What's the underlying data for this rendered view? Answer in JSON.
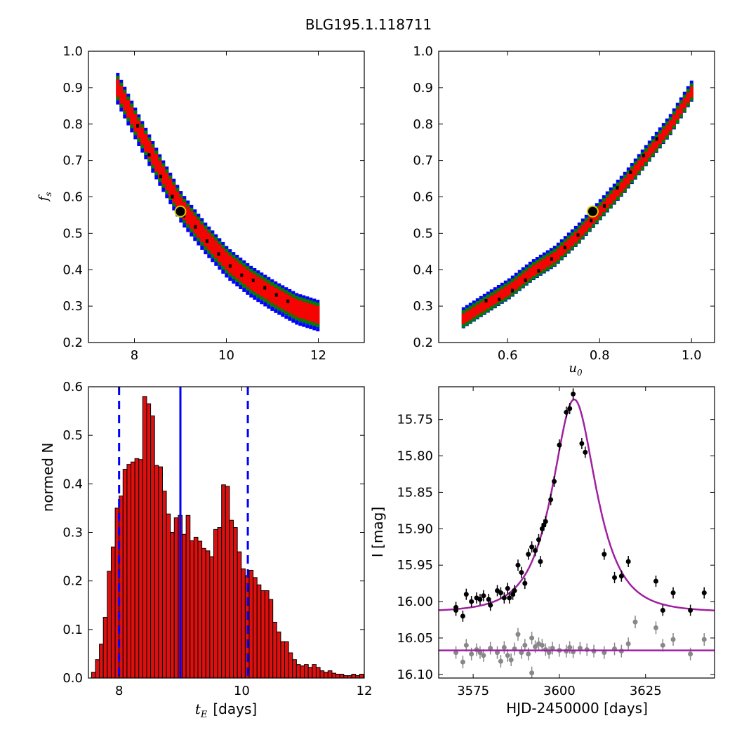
{
  "figure": {
    "suptitle": "BLG195.1.118711"
  },
  "colors": {
    "scatter_outer": "#0000ff",
    "scatter_mid": "#007f00",
    "scatter_inner": "#ff0000",
    "scatter_core": "#000000",
    "best_fit_marker": "#cccc00",
    "histogram_bar": "#dd1010",
    "vline": "#0000ff",
    "model_curve": "#a020a0",
    "data_main": "#000000",
    "data_residual": "#888888"
  },
  "chart_data": [
    {
      "id": "ax1",
      "type": "scatter",
      "xlabel": "",
      "ylabel": "f",
      "ylabel_sub": "s",
      "xlim": [
        7,
        13
      ],
      "ylim": [
        0.2,
        1.0
      ],
      "xticks": [
        8,
        10,
        12
      ],
      "yticks": [
        0.2,
        0.3,
        0.4,
        0.5,
        0.6,
        0.7,
        0.8,
        0.9,
        1.0
      ],
      "xticklabels": [
        "8",
        "10",
        "12"
      ],
      "yticklabels": [
        "0.2",
        "0.3",
        "0.4",
        "0.5",
        "0.6",
        "0.7",
        "0.8",
        "0.9",
        "1.0"
      ],
      "band": [
        [
          7.6,
          0.9
        ],
        [
          8.0,
          0.8
        ],
        [
          8.5,
          0.68
        ],
        [
          9.0,
          0.57
        ],
        [
          9.5,
          0.49
        ],
        [
          10.0,
          0.42
        ],
        [
          10.5,
          0.37
        ],
        [
          11.0,
          0.33
        ],
        [
          11.5,
          0.295
        ],
        [
          12.0,
          0.275
        ]
      ],
      "best_fit": [
        9.0,
        0.56
      ]
    },
    {
      "id": "ax2",
      "type": "scatter",
      "xlabel": "u",
      "xlabel_sub": "0",
      "ylabel": "",
      "xlim": [
        0.45,
        1.05
      ],
      "ylim": [
        0.2,
        1.0
      ],
      "xticks": [
        0.6,
        0.8,
        1.0
      ],
      "yticks": [
        0.2,
        0.3,
        0.4,
        0.5,
        0.6,
        0.7,
        0.8,
        0.9,
        1.0
      ],
      "xticklabels": [
        "0.6",
        "0.8",
        "1.0"
      ],
      "yticklabels": [
        "0.2",
        "0.3",
        "0.4",
        "0.5",
        "0.6",
        "0.7",
        "0.8",
        "0.9",
        "1.0"
      ],
      "band": [
        [
          0.5,
          0.27
        ],
        [
          0.55,
          0.31
        ],
        [
          0.6,
          0.35
        ],
        [
          0.65,
          0.4
        ],
        [
          0.7,
          0.44
        ],
        [
          0.75,
          0.5
        ],
        [
          0.8,
          0.57
        ],
        [
          0.85,
          0.64
        ],
        [
          0.9,
          0.72
        ],
        [
          0.95,
          0.8
        ],
        [
          1.0,
          0.9
        ]
      ],
      "best_fit": [
        0.785,
        0.56
      ]
    },
    {
      "id": "ax3",
      "type": "bar",
      "xlabel": "t",
      "xlabel_sub": "E",
      "xlabel_suffix": "[days]",
      "ylabel": "normed N",
      "xlim": [
        7.5,
        12.0
      ],
      "ylim": [
        0.0,
        0.6
      ],
      "xticks": [
        8,
        10,
        12
      ],
      "yticks": [
        0.0,
        0.1,
        0.2,
        0.3,
        0.4,
        0.5,
        0.6
      ],
      "xticklabels": [
        "8",
        "10",
        "12"
      ],
      "yticklabels": [
        "0.0",
        "0.1",
        "0.2",
        "0.3",
        "0.4",
        "0.5",
        "0.6"
      ],
      "bin_start": 7.55,
      "bin_width": 0.0643,
      "values": [
        0.012,
        0.038,
        0.07,
        0.125,
        0.22,
        0.27,
        0.35,
        0.375,
        0.43,
        0.44,
        0.445,
        0.452,
        0.45,
        0.58,
        0.565,
        0.54,
        0.438,
        0.435,
        0.385,
        0.338,
        0.3,
        0.33,
        0.335,
        0.296,
        0.335,
        0.283,
        0.29,
        0.282,
        0.267,
        0.262,
        0.25,
        0.306,
        0.31,
        0.398,
        0.395,
        0.325,
        0.31,
        0.26,
        0.225,
        0.211,
        0.222,
        0.207,
        0.192,
        0.18,
        0.18,
        0.162,
        0.115,
        0.095,
        0.075,
        0.075,
        0.052,
        0.038,
        0.028,
        0.025,
        0.028,
        0.022,
        0.028,
        0.022,
        0.015,
        0.012,
        0.015,
        0.01,
        0.008,
        0.008,
        0.005,
        0.005,
        0.008,
        0.005,
        0.008
      ],
      "median": 9.0,
      "lower": 8.0,
      "upper": 10.1
    },
    {
      "id": "ax4",
      "type": "line",
      "xlabel": "HJD-2450000 [days]",
      "ylabel": "I [mag]",
      "xlim": [
        3565,
        3645
      ],
      "ylim": [
        16.105,
        15.705
      ],
      "xticks": [
        3575,
        3600,
        3625
      ],
      "yticks": [
        15.75,
        15.8,
        15.85,
        15.9,
        15.95,
        16.0,
        16.05,
        16.1
      ],
      "xticklabels": [
        "3575",
        "3600",
        "3625"
      ],
      "yticklabels": [
        "15.75",
        "15.80",
        "15.85",
        "15.90",
        "15.95",
        "16.00",
        "16.05",
        "16.10"
      ],
      "model": {
        "t0": 3604.3,
        "tE": 9.0,
        "u0": 0.785,
        "fs": 0.56,
        "i_base": 16.0145,
        "residual_baseline": 16.067
      },
      "series_main": [
        [
          3570,
          16.008
        ],
        [
          3570,
          16.012
        ],
        [
          3572,
          16.02
        ],
        [
          3573,
          15.99
        ],
        [
          3574.5,
          16.0
        ],
        [
          3576,
          15.995
        ],
        [
          3577,
          15.997
        ],
        [
          3578,
          15.992
        ],
        [
          3579.5,
          15.997
        ],
        [
          3580,
          16.005
        ],
        [
          3582,
          15.985
        ],
        [
          3583,
          15.988
        ],
        [
          3584,
          15.995
        ],
        [
          3585,
          15.982
        ],
        [
          3585.5,
          15.995
        ],
        [
          3586.5,
          15.99
        ],
        [
          3587,
          15.985
        ],
        [
          3588,
          15.95
        ],
        [
          3589,
          15.96
        ],
        [
          3590,
          15.975
        ],
        [
          3591,
          15.935
        ],
        [
          3592,
          15.925
        ],
        [
          3593,
          15.93
        ],
        [
          3594,
          15.915
        ],
        [
          3594.5,
          15.945
        ],
        [
          3595,
          15.9
        ],
        [
          3595.5,
          15.895
        ],
        [
          3596,
          15.89
        ],
        [
          3597.5,
          15.86
        ],
        [
          3598.5,
          15.835
        ],
        [
          3600,
          15.785
        ],
        [
          3602,
          15.74
        ],
        [
          3603,
          15.735
        ],
        [
          3604,
          15.715
        ],
        [
          3606.5,
          15.783
        ],
        [
          3607.5,
          15.795
        ],
        [
          3613,
          15.935
        ],
        [
          3616,
          15.967
        ],
        [
          3618,
          15.965
        ],
        [
          3620,
          15.945
        ],
        [
          3628,
          15.972
        ],
        [
          3630,
          16.012
        ],
        [
          3633,
          15.988
        ],
        [
          3638,
          16.012
        ],
        [
          3642,
          15.988
        ]
      ],
      "series_resid": [
        [
          3570,
          16.07
        ],
        [
          3572,
          16.083
        ],
        [
          3573,
          16.06
        ],
        [
          3574.5,
          16.072
        ],
        [
          3576,
          16.066
        ],
        [
          3577,
          16.07
        ],
        [
          3578,
          16.074
        ],
        [
          3580,
          16.064
        ],
        [
          3582,
          16.07
        ],
        [
          3583,
          16.082
        ],
        [
          3584,
          16.063
        ],
        [
          3585,
          16.074
        ],
        [
          3586,
          16.08
        ],
        [
          3587,
          16.065
        ],
        [
          3588,
          16.045
        ],
        [
          3589,
          16.07
        ],
        [
          3590,
          16.06
        ],
        [
          3591,
          16.072
        ],
        [
          3592,
          16.05
        ],
        [
          3593,
          16.062
        ],
        [
          3594,
          16.058
        ],
        [
          3595,
          16.06
        ],
        [
          3596,
          16.066
        ],
        [
          3597,
          16.07
        ],
        [
          3598,
          16.064
        ],
        [
          3600,
          16.067
        ],
        [
          3602,
          16.068
        ],
        [
          3603,
          16.063
        ],
        [
          3604,
          16.069
        ],
        [
          3606,
          16.064
        ],
        [
          3608,
          16.066
        ],
        [
          3610,
          16.068
        ],
        [
          3613,
          16.07
        ],
        [
          3616,
          16.065
        ],
        [
          3618,
          16.068
        ],
        [
          3620,
          16.058
        ],
        [
          3622,
          16.028
        ],
        [
          3628,
          16.036
        ],
        [
          3630,
          16.06
        ],
        [
          3633,
          16.052
        ],
        [
          3638,
          16.072
        ],
        [
          3642,
          16.052
        ],
        [
          3592,
          16.098
        ]
      ]
    }
  ]
}
